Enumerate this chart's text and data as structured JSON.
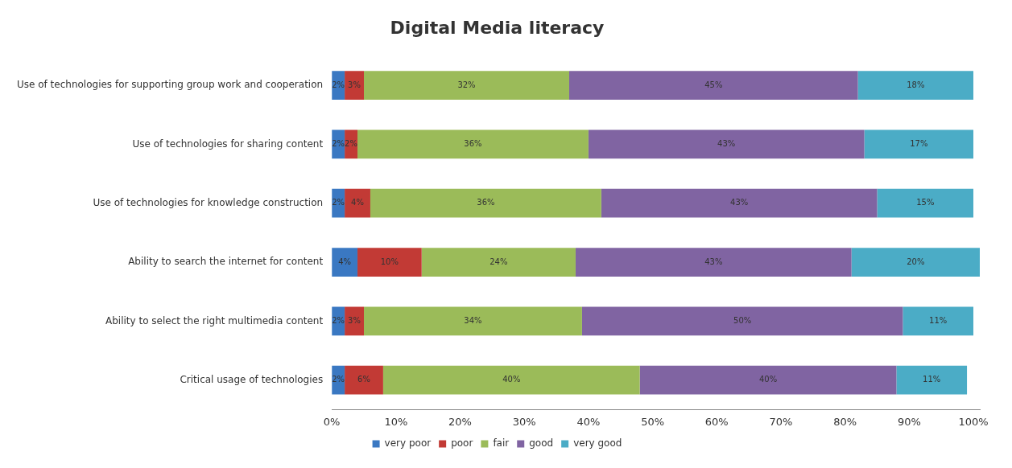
{
  "chart_data": {
    "type": "bar",
    "title": "Digital Media literacy",
    "orientation": "horizontal",
    "stacked": true,
    "legend": "bottom",
    "grid": false,
    "categories": [
      "Use of technologies for supporting group work and cooperation",
      "Use of technologies for sharing content",
      "Use of technologies for knowledge construction",
      "Ability to search the internet for content",
      "Ability to select the right multimedia content",
      "Critical usage of technologies"
    ],
    "xlim": [
      0,
      101
    ],
    "xticks": [
      {
        "value": 0,
        "label": "0%"
      },
      {
        "value": 10,
        "label": "10%"
      },
      {
        "value": 20,
        "label": "20%"
      },
      {
        "value": 30,
        "label": "30%"
      },
      {
        "value": 40,
        "label": "40%"
      },
      {
        "value": 50,
        "label": "50%"
      },
      {
        "value": 60,
        "label": "60%"
      },
      {
        "value": 70,
        "label": "70%"
      },
      {
        "value": 80,
        "label": "80%"
      },
      {
        "value": 90,
        "label": "90%"
      },
      {
        "value": 100,
        "label": "100%"
      }
    ],
    "series": [
      {
        "name": "very poor",
        "color": "#3a78c2",
        "values": [
          2,
          2,
          2,
          4,
          2,
          2
        ],
        "value_labels": [
          "2%",
          "2%",
          "2%",
          "4%",
          "2%",
          "2%"
        ]
      },
      {
        "name": "poor",
        "color": "#c23a35",
        "values": [
          3,
          2,
          4,
          10,
          3,
          6
        ],
        "value_labels": [
          "3%",
          "2%",
          "4%",
          "10%",
          "3%",
          "6%"
        ]
      },
      {
        "name": "fair",
        "color": "#9bbb59",
        "values": [
          32,
          36,
          36,
          24,
          34,
          40
        ],
        "value_labels": [
          "32%",
          "36%",
          "36%",
          "24%",
          "34%",
          "40%"
        ]
      },
      {
        "name": "good",
        "color": "#8064a2",
        "values": [
          45,
          43,
          43,
          43,
          50,
          40
        ],
        "value_labels": [
          "45%",
          "43%",
          "43%",
          "43%",
          "50%",
          "40%"
        ]
      },
      {
        "name": "very good",
        "color": "#4bacc6",
        "values": [
          18,
          17,
          15,
          20,
          11,
          11
        ],
        "value_labels": [
          "18%",
          "17%",
          "15%",
          "20%",
          "11%",
          "11%"
        ]
      }
    ]
  }
}
